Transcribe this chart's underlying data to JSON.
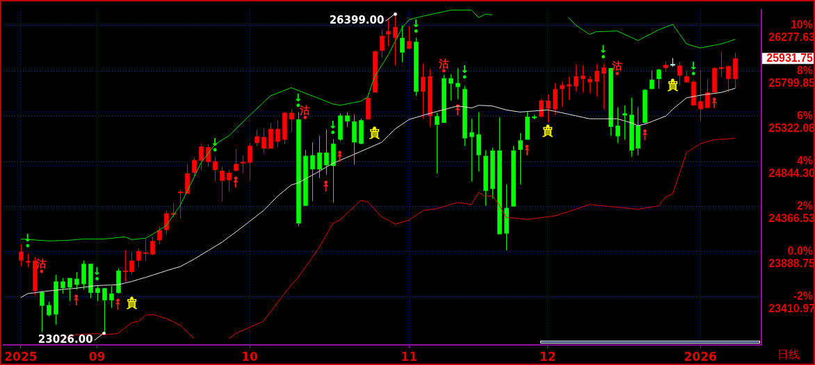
{
  "chart_data": {
    "type": "candlestick",
    "categories": [
      "2025",
      null,
      null,
      null,
      null,
      null,
      null,
      null,
      null,
      null,
      null,
      "09",
      null,
      null,
      null,
      null,
      null,
      null,
      null,
      null,
      null,
      null,
      null,
      null,
      null,
      null,
      null,
      null,
      null,
      null,
      null,
      null,
      null,
      "10",
      null,
      null,
      null,
      null,
      null,
      null,
      null,
      null,
      null,
      null,
      null,
      null,
      null,
      null,
      null,
      null,
      null,
      null,
      null,
      null,
      null,
      null,
      "11",
      null,
      null,
      null,
      null,
      null,
      null,
      null,
      null,
      null,
      null,
      null,
      null,
      null,
      null,
      null,
      null,
      null,
      null,
      null,
      "12",
      null,
      null,
      null,
      null,
      null,
      null,
      null,
      null,
      null,
      null,
      null,
      null,
      null,
      null,
      null,
      null,
      null,
      null,
      null,
      null,
      null,
      "2026",
      null,
      null,
      null,
      null,
      null
    ],
    "ohlc": [
      [
        23796,
        23967,
        23739,
        23889
      ],
      [
        23782,
        23868,
        23725,
        23782
      ],
      [
        23475,
        23832,
        23433,
        23796
      ],
      [
        23461,
        23475,
        23040,
        23318
      ],
      [
        23326,
        23361,
        23204,
        23219
      ],
      [
        23575,
        23647,
        23119,
        23226
      ],
      [
        23575,
        23611,
        23447,
        23504
      ],
      [
        23611,
        23611,
        23368,
        23511
      ],
      [
        23604,
        23675,
        23490,
        23540
      ],
      [
        23761,
        23796,
        23490,
        23547
      ],
      [
        23761,
        23761,
        23397,
        23454
      ],
      [
        23504,
        23532,
        23368,
        23454
      ],
      [
        23504,
        23504,
        23026,
        23376
      ],
      [
        23447,
        23525,
        23297,
        23376
      ],
      [
        23689,
        23711,
        23447,
        23454
      ],
      [
        23682,
        23903,
        23575,
        23682
      ],
      [
        23675,
        23882,
        23647,
        23796
      ],
      [
        23796,
        23925,
        23725,
        23896
      ],
      [
        23875,
        24024,
        23789,
        23875
      ],
      [
        23860,
        24046,
        23853,
        24003
      ],
      [
        24010,
        24153,
        23967,
        24117
      ],
      [
        24117,
        24324,
        24074,
        24295
      ],
      [
        24288,
        24402,
        24253,
        24288
      ],
      [
        24516,
        24545,
        24246,
        24516
      ],
      [
        24502,
        24816,
        24502,
        24716
      ],
      [
        24723,
        24887,
        24680,
        24859
      ],
      [
        24852,
        25030,
        24752,
        25001
      ],
      [
        24837,
        25023,
        24787,
        24994
      ],
      [
        24752,
        24894,
        24631,
        24844
      ],
      [
        24638,
        24787,
        24424,
        24745
      ],
      [
        24645,
        24752,
        24524,
        24723
      ],
      [
        24745,
        24973,
        24738,
        24816
      ],
      [
        24830,
        24909,
        24723,
        24830
      ],
      [
        24830,
        25037,
        24638,
        25008
      ],
      [
        25037,
        25180,
        25008,
        25108
      ],
      [
        24980,
        25194,
        24930,
        25101
      ],
      [
        24980,
        25251,
        24980,
        25187
      ],
      [
        25051,
        25279,
        24994,
        25187
      ],
      [
        25073,
        25365,
        25023,
        25358
      ],
      [
        25287,
        25394,
        25158,
        25358
      ],
      [
        25287,
        25365,
        24160,
        24188
      ],
      [
        24902,
        24966,
        24374,
        24374
      ],
      [
        24909,
        25044,
        24424,
        24759
      ],
      [
        24937,
        25115,
        24666,
        24759
      ],
      [
        24937,
        25180,
        24702,
        24802
      ],
      [
        25030,
        25080,
        24409,
        24795
      ],
      [
        25329,
        25351,
        25058,
        25073
      ],
      [
        25329,
        25365,
        25208,
        25265
      ],
      [
        25265,
        25337,
        24809,
        25044
      ],
      [
        25279,
        25294,
        25023,
        25030
      ],
      [
        25287,
        25565,
        25287,
        25515
      ],
      [
        25572,
        26014,
        25572,
        26007
      ],
      [
        26014,
        26235,
        25943,
        26171
      ],
      [
        26185,
        26356,
        26057,
        26221
      ],
      [
        26149,
        26399,
        25857,
        26264
      ],
      [
        26149,
        26278,
        25893,
        25993
      ],
      [
        26035,
        26271,
        26028,
        26114
      ],
      [
        26107,
        26149,
        25536,
        25579
      ],
      [
        25579,
        25878,
        25294,
        25736
      ],
      [
        25322,
        25821,
        25208,
        25743
      ],
      [
        25322,
        25358,
        24716,
        25230
      ],
      [
        25722,
        25757,
        25251,
        25251
      ],
      [
        25722,
        25764,
        25486,
        25665
      ],
      [
        25672,
        25829,
        25501,
        25629
      ],
      [
        25608,
        25643,
        25008,
        25087
      ],
      [
        25151,
        25294,
        24631,
        25101
      ],
      [
        25130,
        25365,
        24738,
        24909
      ],
      [
        24902,
        24959,
        24374,
        24531
      ],
      [
        24959,
        24987,
        24452,
        24552
      ],
      [
        24959,
        25308,
        24074,
        24074
      ],
      [
        24352,
        24602,
        23903,
        24081
      ],
      [
        24959,
        25008,
        24367,
        24367
      ],
      [
        25066,
        25144,
        24602,
        24966
      ],
      [
        25315,
        25372,
        25073,
        25073
      ],
      [
        25308,
        25337,
        25287,
        25308
      ],
      [
        25315,
        25501,
        25308,
        25486
      ],
      [
        25401,
        25550,
        25258,
        25486
      ],
      [
        25394,
        25672,
        25337,
        25608
      ],
      [
        25608,
        25686,
        25422,
        25650
      ],
      [
        25636,
        25736,
        25493,
        25657
      ],
      [
        25636,
        25864,
        25586,
        25743
      ],
      [
        25714,
        25857,
        25572,
        25750
      ],
      [
        25679,
        25743,
        25565,
        25714
      ],
      [
        25686,
        25871,
        25529,
        25800
      ],
      [
        25772,
        25878,
        25394,
        25836
      ],
      [
        25829,
        25829,
        25115,
        25208
      ],
      [
        25222,
        25415,
        25037,
        25108
      ],
      [
        25351,
        25436,
        25073,
        25329
      ],
      [
        25337,
        25515,
        24894,
        24959
      ],
      [
        25222,
        25415,
        24909,
        24980
      ],
      [
        25600,
        25608,
        25237,
        25251
      ],
      [
        25707,
        25807,
        25608,
        25608
      ],
      [
        25814,
        25821,
        25615,
        25714
      ],
      [
        25829,
        25900,
        25786,
        25864
      ],
      [
        25864,
        25936,
        25843,
        25864
      ],
      [
        25750,
        25893,
        25650,
        25857
      ],
      [
        25679,
        25800,
        25679,
        25743
      ],
      [
        25436,
        25700,
        25429,
        25686
      ],
      [
        25394,
        25807,
        25265,
        25479
      ],
      [
        25408,
        25714,
        25408,
        25572
      ],
      [
        25572,
        25836,
        25572,
        25829
      ],
      [
        25829,
        26000,
        25736,
        25829
      ],
      [
        25714,
        25850,
        25572,
        25850
      ],
      [
        25714,
        25993,
        25615,
        25931.75
      ]
    ],
    "colors": [
      "#ff0000",
      "#ff0000",
      "#ff0000",
      "#00ff00",
      "#00ff00",
      "#00ff00",
      "#00ff00",
      "#00ff00",
      "#00ff00",
      "#00ff00",
      "#00ff00",
      "#00ff00",
      "#00ff00",
      "#00ff00",
      "#00ff00",
      "#ff0000",
      "#ff0000",
      "#ff0000",
      "#ff0000",
      "#ff0000",
      "#ff0000",
      "#ff0000",
      "#ff0000",
      "#ff0000",
      "#ff0000",
      "#ff0000",
      "#ff0000",
      "#ff0000",
      "#ff0000",
      "#ff0000",
      "#ff0000",
      "#ff0000",
      "#ff0000",
      "#ff0000",
      "#ff0000",
      "#ff0000",
      "#ff0000",
      "#ff0000",
      "#ff0000",
      "#ff0000",
      "#00ff00",
      "#00ff00",
      "#00ff00",
      "#00ff00",
      "#00ff00",
      "#00ff00",
      "#00ff00",
      "#00ff00",
      "#00ff00",
      "#00ff00",
      "#ff0000",
      "#ff0000",
      "#ff0000",
      "#ff0000",
      "#ff0000",
      "#00ff00",
      "#ff0000",
      "#00ff00",
      "#ff0000",
      "#ff0000",
      "#00ff00",
      "#00ff00",
      "#00ff00",
      "#00ff00",
      "#00ff00",
      "#00ff00",
      "#00ff00",
      "#00ff00",
      "#00ff00",
      "#00ff00",
      "#00ff00",
      "#00ff00",
      "#00ff00",
      "#00ff00",
      "#00ff00",
      "#ff0000",
      "#ff0000",
      "#ff0000",
      "#ff0000",
      "#ff0000",
      "#ff0000",
      "#ff0000",
      "#ff0000",
      "#ff0000",
      "#ff0000",
      "#00ff00",
      "#00ff00",
      "#00ff00",
      "#00ff00",
      "#00ff00",
      "#00ff00",
      "#00ff00",
      "#00ff00",
      "#ff0000",
      "#c0ffff",
      "#ff0000",
      "#ff0000",
      "#ff0000",
      "#ff0000",
      "#ff0000",
      "#ff0000",
      "#ff0000",
      "#ff0000",
      "#ff0000"
    ],
    "series": [
      {
        "type": "line",
        "color": "#00dd00",
        "values": [
          24024,
          24019,
          24013,
          24008,
          24003,
          24005,
          24008,
          24010,
          24017,
          24024,
          24024,
          24024,
          24024,
          24031,
          24039,
          24046,
          24017,
          24025,
          24032,
          24074,
          24120,
          24167,
          24274,
          24381,
          24531,
          24680,
          24830,
          24926,
          25023,
          25069,
          25115,
          25186,
          25258,
          25329,
          25398,
          25467,
          25536,
          25565,
          25593,
          25622,
          25593,
          25565,
          25536,
          25508,
          25479,
          25451,
          25436,
          25450,
          25465,
          25479,
          25522,
          25736,
          25853,
          25971,
          26113,
          26256,
          26342,
          26360,
          26378,
          26394,
          26410,
          26426,
          26442,
          26442,
          26442,
          26442,
          26363,
          26399,
          26392,
          null,
          null,
          null,
          null,
          null,
          null,
          null,
          null,
          null,
          null,
          26363,
          26285,
          26235,
          26185,
          26214,
          26216,
          26219,
          26221,
          26188,
          26154,
          26121,
          26159,
          26197,
          26235,
          26263,
          26292,
          26188,
          26085,
          26063,
          26042,
          26056,
          26071,
          26085,
          26107,
          26135
        ]
      },
      {
        "type": "line",
        "color": "#e8e8e8",
        "values": [
          23404,
          23447,
          23456,
          23466,
          23475,
          23482,
          23490,
          23497,
          23504,
          23513,
          23523,
          23532,
          23535,
          23537,
          23540,
          23558,
          23575,
          23597,
          23618,
          23642,
          23665,
          23689,
          23711,
          23732,
          23772,
          23811,
          23856,
          23900,
          23945,
          23989,
          24044,
          24098,
          24153,
          24210,
          24267,
          24324,
          24399,
          24474,
          24535,
          24595,
          24616,
          24657,
          24697,
          24738,
          24781,
          24823,
          24854,
          24885,
          24916,
          24948,
          24980,
          25012,
          25044,
          25116,
          25187,
          25237,
          25287,
          25308,
          25330,
          25351,
          25371,
          25390,
          25410,
          25429,
          25419,
          25408,
          25436,
          25433,
          25429,
          25408,
          25387,
          25376,
          25365,
          25371,
          25376,
          25382,
          25387,
          25373,
          25358,
          25342,
          25326,
          25310,
          25294,
          25294,
          25294,
          25294,
          25294,
          25273,
          25251,
          25222,
          25237,
          25265,
          25294,
          25322,
          25394,
          25455,
          25515,
          25529,
          25543,
          25553,
          25562,
          25572,
          25594,
          25615
        ]
      },
      {
        "type": "line",
        "color": "#e00000",
        "values": [
          null,
          null,
          null,
          null,
          null,
          null,
          22969,
          22991,
          23012,
          23017,
          23021,
          23026,
          23012,
          23019,
          23026,
          23083,
          23140,
          23154,
          23219,
          23226,
          23205,
          23183,
          23148,
          23112,
          23041,
          22969,
          null,
          null,
          null,
          null,
          22969,
          23026,
          23058,
          23090,
          23122,
          23154,
          23254,
          23349,
          23445,
          23540,
          23618,
          23723,
          23827,
          23932,
          24060,
          24188,
          24224,
          24292,
          24360,
          24431,
          24417,
          24339,
          24260,
          24221,
          24181,
          24203,
          24224,
          24274,
          24324,
          24335,
          24345,
          24366,
          24388,
          24409,
          24399,
          24388,
          24516,
          24474,
          24481,
          24381,
          24253,
          24246,
          24238,
          24231,
          24240,
          24249,
          24258,
          24267,
          24291,
          24314,
          24338,
          24363,
          24388,
          24381,
          24374,
          24367,
          24360,
          24352,
          24345,
          24338,
          24350,
          24362,
          24374,
          24467,
          24502,
          24720,
          24937,
          24984,
          25030,
          25052,
          25073,
          25078,
          25082,
          25087
        ]
      },
      {
        "type": "scatter",
        "marker": "circle",
        "color": "#ffffff",
        "values": [
          null,
          null,
          null,
          null,
          null,
          null,
          null,
          null,
          null,
          null,
          null,
          null,
          23026,
          null,
          null,
          null,
          null,
          null,
          null,
          null,
          null,
          null,
          null,
          null,
          null,
          null,
          null,
          null,
          null,
          null,
          null,
          null,
          null,
          null,
          null,
          null,
          null,
          null,
          null,
          null,
          null,
          null,
          null,
          null,
          null,
          null,
          null,
          null,
          null,
          null,
          null,
          null,
          null,
          null,
          26399,
          null,
          null,
          null,
          null,
          null,
          null,
          null,
          null,
          null,
          null,
          null,
          null,
          null,
          null,
          null,
          null,
          null,
          null,
          null,
          null,
          null,
          null,
          null,
          null,
          null,
          null,
          null,
          null,
          null,
          null,
          null,
          null,
          null,
          null,
          null,
          null,
          null,
          null,
          null,
          null,
          null,
          null,
          null,
          null,
          null,
          null,
          null,
          null,
          null
        ],
        "value_labels": [
          null,
          null,
          null,
          null,
          null,
          null,
          null,
          null,
          null,
          null,
          null,
          null,
          "23026.00",
          null,
          null,
          null,
          null,
          null,
          null,
          null,
          null,
          null,
          null,
          null,
          null,
          null,
          null,
          null,
          null,
          null,
          null,
          null,
          null,
          null,
          null,
          null,
          null,
          null,
          null,
          null,
          null,
          null,
          null,
          null,
          null,
          null,
          null,
          null,
          null,
          null,
          null,
          null,
          null,
          null,
          "26399.00",
          null,
          null,
          null,
          null,
          null,
          null,
          null,
          null,
          null,
          null,
          null,
          null,
          null,
          null,
          null,
          null,
          null,
          null,
          null,
          null,
          null,
          null,
          null,
          null,
          null,
          null,
          null,
          null,
          null,
          null,
          null,
          null,
          null,
          null,
          null,
          null,
          null,
          null,
          null,
          null,
          null,
          null,
          null,
          null,
          null,
          null,
          null,
          null,
          null
        ]
      },
      {
        "type": "scatter",
        "marker": "circle",
        "color": "#ff2020",
        "values": [
          null,
          null,
          null,
          23682,
          null,
          null,
          null,
          null,
          null,
          null,
          null,
          null,
          null,
          null,
          null,
          null,
          null,
          null,
          null,
          null,
          null,
          null,
          null,
          null,
          null,
          null,
          null,
          null,
          null,
          null,
          null,
          null,
          null,
          null,
          null,
          null,
          null,
          null,
          null,
          null,
          null,
          25308,
          null,
          null,
          null,
          null,
          null,
          null,
          null,
          null,
          null,
          null,
          null,
          null,
          null,
          null,
          null,
          null,
          null,
          null,
          null,
          25800,
          null,
          null,
          null,
          null,
          null,
          null,
          null,
          null,
          null,
          null,
          null,
          null,
          null,
          null,
          null,
          null,
          null,
          null,
          null,
          null,
          null,
          null,
          null,
          null,
          25772,
          null,
          null,
          null,
          null,
          null,
          null,
          null,
          null,
          null,
          null,
          null,
          null,
          null,
          null,
          null,
          null,
          null
        ],
        "value_labels": [
          null,
          null,
          null,
          "沽",
          null,
          null,
          null,
          null,
          null,
          null,
          null,
          null,
          null,
          null,
          null,
          null,
          null,
          null,
          null,
          null,
          null,
          null,
          null,
          null,
          null,
          null,
          null,
          null,
          null,
          null,
          null,
          null,
          null,
          null,
          null,
          null,
          null,
          null,
          null,
          null,
          null,
          "沽",
          null,
          null,
          null,
          null,
          null,
          null,
          null,
          null,
          null,
          null,
          null,
          null,
          null,
          null,
          null,
          null,
          null,
          null,
          null,
          "沽",
          null,
          null,
          null,
          null,
          null,
          null,
          null,
          null,
          null,
          null,
          null,
          null,
          null,
          null,
          null,
          null,
          null,
          null,
          null,
          null,
          null,
          null,
          null,
          null,
          "沽",
          null,
          null,
          null,
          null,
          null,
          null,
          null,
          null,
          null,
          null,
          null,
          null,
          null,
          null,
          null,
          null,
          null
        ]
      },
      {
        "type": "scatter",
        "marker": "circle",
        "color": "#ffff00",
        "values": [
          null,
          null,
          null,
          null,
          null,
          null,
          null,
          null,
          null,
          null,
          null,
          null,
          null,
          null,
          null,
          null,
          23397,
          null,
          null,
          null,
          null,
          null,
          null,
          null,
          null,
          null,
          null,
          null,
          null,
          null,
          null,
          null,
          null,
          null,
          null,
          null,
          null,
          null,
          null,
          null,
          null,
          null,
          null,
          null,
          null,
          null,
          null,
          null,
          null,
          null,
          null,
          25194,
          null,
          null,
          null,
          null,
          null,
          null,
          null,
          null,
          null,
          null,
          null,
          null,
          null,
          null,
          null,
          null,
          null,
          null,
          null,
          null,
          null,
          null,
          null,
          null,
          25215,
          null,
          null,
          null,
          null,
          null,
          null,
          null,
          null,
          null,
          null,
          null,
          null,
          null,
          null,
          null,
          null,
          null,
          25700,
          null,
          null,
          null,
          null,
          null,
          null,
          null,
          null,
          null
        ],
        "value_labels": [
          null,
          null,
          null,
          null,
          null,
          null,
          null,
          null,
          null,
          null,
          null,
          null,
          null,
          null,
          null,
          null,
          "買",
          null,
          null,
          null,
          null,
          null,
          null,
          null,
          null,
          null,
          null,
          null,
          null,
          null,
          null,
          null,
          null,
          null,
          null,
          null,
          null,
          null,
          null,
          null,
          null,
          null,
          null,
          null,
          null,
          null,
          null,
          null,
          null,
          null,
          null,
          "買",
          null,
          null,
          null,
          null,
          null,
          null,
          null,
          null,
          null,
          null,
          null,
          null,
          null,
          null,
          null,
          null,
          null,
          null,
          null,
          null,
          null,
          null,
          null,
          null,
          "買",
          null,
          null,
          null,
          null,
          null,
          null,
          null,
          null,
          null,
          null,
          null,
          null,
          null,
          null,
          null,
          null,
          null,
          "買",
          null,
          null,
          null,
          null,
          null,
          null,
          null,
          null,
          null
        ]
      },
      {
        "type": "scatter",
        "marker": "circle",
        "color": "#00ff00",
        "values": [
          null,
          23953,
          null,
          null,
          null,
          null,
          null,
          null,
          null,
          null,
          null,
          23604,
          null,
          null,
          null,
          null,
          null,
          null,
          null,
          null,
          null,
          null,
          null,
          null,
          null,
          null,
          null,
          null,
          24966,
          null,
          null,
          null,
          null,
          null,
          null,
          null,
          null,
          null,
          null,
          null,
          25436,
          null,
          null,
          null,
          null,
          25151,
          null,
          null,
          null,
          null,
          null,
          null,
          null,
          null,
          null,
          null,
          null,
          26221,
          null,
          null,
          null,
          null,
          null,
          null,
          25736,
          null,
          null,
          null,
          null,
          null,
          null,
          null,
          null,
          null,
          null,
          null,
          null,
          null,
          null,
          null,
          null,
          null,
          null,
          null,
          25950,
          null,
          null,
          null,
          null,
          null,
          null,
          null,
          null,
          null,
          null,
          null,
          null,
          25772,
          null,
          null,
          null,
          null,
          null,
          null
        ],
        "value_labels": [
          null,
          "↓",
          null,
          null,
          null,
          null,
          null,
          null,
          null,
          null,
          null,
          "↓",
          null,
          null,
          null,
          null,
          null,
          null,
          null,
          null,
          null,
          null,
          null,
          null,
          null,
          null,
          null,
          null,
          "↓",
          null,
          null,
          null,
          null,
          null,
          null,
          null,
          null,
          null,
          null,
          null,
          "↓",
          null,
          null,
          null,
          null,
          "↓",
          null,
          null,
          null,
          null,
          null,
          null,
          null,
          null,
          null,
          null,
          null,
          "↓",
          null,
          null,
          null,
          null,
          null,
          null,
          "↓",
          null,
          null,
          null,
          null,
          null,
          null,
          null,
          null,
          null,
          null,
          null,
          null,
          null,
          null,
          null,
          null,
          null,
          null,
          null,
          "↓",
          null,
          null,
          null,
          null,
          null,
          null,
          null,
          null,
          null,
          null,
          null,
          null,
          "↓",
          null,
          null,
          null,
          null,
          null,
          null
        ]
      },
      {
        "type": "scatter",
        "marker": "circle",
        "color": "#ff2020",
        "values": [
          null,
          null,
          null,
          null,
          null,
          null,
          null,
          null,
          23418,
          null,
          null,
          null,
          null,
          null,
          23376,
          null,
          null,
          null,
          null,
          null,
          null,
          null,
          null,
          null,
          null,
          null,
          null,
          null,
          null,
          null,
          null,
          24666,
          null,
          null,
          null,
          null,
          null,
          null,
          null,
          null,
          null,
          null,
          null,
          null,
          24623,
          null,
          24937,
          null,
          null,
          null,
          null,
          null,
          null,
          null,
          null,
          null,
          null,
          null,
          null,
          null,
          null,
          null,
          null,
          25429,
          null,
          null,
          null,
          null,
          null,
          null,
          null,
          null,
          null,
          25001,
          null,
          null,
          null,
          null,
          null,
          null,
          null,
          null,
          null,
          null,
          null,
          null,
          null,
          null,
          null,
          null,
          25165,
          null,
          null,
          null,
          null,
          null,
          null,
          null,
          null,
          null,
          25501,
          null,
          null,
          null
        ],
        "value_labels": [
          null,
          null,
          null,
          null,
          null,
          null,
          null,
          null,
          "↑",
          null,
          null,
          null,
          null,
          null,
          "↑",
          null,
          null,
          null,
          null,
          null,
          null,
          null,
          null,
          null,
          null,
          null,
          null,
          null,
          null,
          null,
          null,
          "↑",
          null,
          null,
          null,
          null,
          null,
          null,
          null,
          null,
          null,
          null,
          null,
          null,
          "↑",
          null,
          "↑",
          null,
          null,
          null,
          null,
          null,
          null,
          null,
          null,
          null,
          null,
          null,
          null,
          null,
          null,
          null,
          null,
          "↑",
          null,
          null,
          null,
          null,
          null,
          null,
          null,
          null,
          null,
          "↑",
          null,
          null,
          null,
          null,
          null,
          null,
          null,
          null,
          null,
          null,
          null,
          null,
          null,
          null,
          null,
          null,
          "↑",
          null,
          null,
          null,
          null,
          null,
          null,
          null,
          null,
          null,
          "↑",
          null,
          null,
          null
        ]
      }
    ],
    "ylim": [
      22905,
      26449
    ],
    "yticks": [
      23410.97,
      23888.75,
      24366.53,
      {
        "value": 24844.3,
        "label": "24844.30"
      },
      25322.08,
      25799.85,
      26277.63
    ],
    "y2lim": [
      -4.12,
      10.72
    ],
    "y2ticks": [
      {
        "value": -2,
        "label": "-2%"
      },
      {
        "value": 0,
        "label": "0.0%"
      },
      {
        "value": 2,
        "label": "2%"
      },
      {
        "value": 4,
        "label": "4%"
      },
      {
        "value": 6,
        "label": "6%"
      },
      {
        "value": 8,
        "label": "8%"
      },
      {
        "value": 10,
        "label": "10%"
      }
    ],
    "grid": true,
    "marker": "none",
    "annotations": [
      "25931.75",
      "日线"
    ]
  }
}
